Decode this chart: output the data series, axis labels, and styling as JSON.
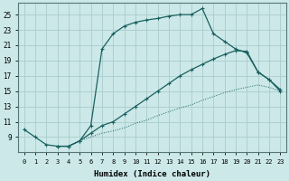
{
  "xlabel": "Humidex (Indice chaleur)",
  "bg_color": "#cce8e8",
  "grid_color": "#aacccc",
  "line_color": "#1a6060",
  "xlim": [
    -0.5,
    23.5
  ],
  "ylim": [
    7,
    26.5
  ],
  "xticks": [
    0,
    1,
    2,
    3,
    4,
    5,
    6,
    7,
    8,
    9,
    10,
    11,
    12,
    13,
    14,
    15,
    16,
    17,
    18,
    19,
    20,
    21,
    22,
    23
  ],
  "yticks": [
    9,
    11,
    13,
    15,
    17,
    19,
    21,
    23,
    25
  ],
  "ytick_labels": [
    "9",
    "11",
    "13",
    "15",
    "17",
    "19",
    "21",
    "23",
    "25"
  ],
  "line1": {
    "x": [
      0,
      1,
      2,
      3,
      4,
      5,
      6,
      7,
      8,
      9,
      10,
      11,
      12,
      13,
      14,
      15,
      16,
      17,
      18,
      19,
      20,
      21,
      22,
      23
    ],
    "y": [
      10.0,
      9.0,
      8.0,
      7.8,
      7.8,
      8.5,
      10.5,
      20.5,
      22.5,
      23.5,
      24.0,
      24.3,
      24.5,
      24.8,
      25.0,
      25.0,
      25.8,
      22.5,
      21.5,
      20.5,
      20.0,
      17.5,
      16.5,
      15.0
    ]
  },
  "line2": {
    "x": [
      3,
      4,
      5,
      6,
      7,
      8,
      9,
      10,
      11,
      12,
      13,
      14,
      15,
      16,
      17,
      18,
      19,
      20,
      21,
      22,
      23
    ],
    "y": [
      7.8,
      7.8,
      8.5,
      9.5,
      10.5,
      11.0,
      12.0,
      13.0,
      14.0,
      15.0,
      16.0,
      17.0,
      17.8,
      18.5,
      19.2,
      19.8,
      20.3,
      20.2,
      17.5,
      16.5,
      15.2
    ]
  },
  "line3": {
    "x": [
      3,
      4,
      5,
      6,
      7,
      8,
      9,
      10,
      11,
      12,
      13,
      14,
      15,
      16,
      17,
      18,
      19,
      20,
      21,
      22,
      23
    ],
    "y": [
      7.8,
      7.8,
      8.5,
      9.0,
      9.5,
      9.8,
      10.2,
      10.8,
      11.2,
      11.8,
      12.3,
      12.8,
      13.2,
      13.8,
      14.3,
      14.8,
      15.2,
      15.5,
      15.8,
      15.5,
      15.0
    ]
  }
}
